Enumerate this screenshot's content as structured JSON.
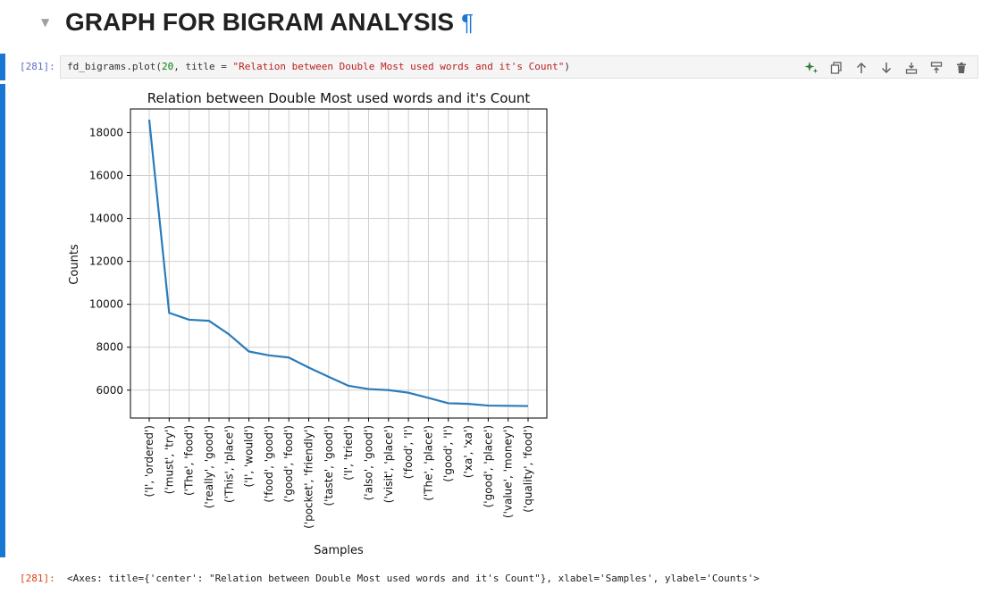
{
  "heading": {
    "text": "GRAPH FOR BIGRAM ANALYSIS",
    "anchor": "¶"
  },
  "cell_in": {
    "prompt": "[281]:",
    "code_parts": [
      "fd_bigrams.plot(",
      "20",
      ", title = ",
      "\"Relation between Double Most used words and it's Count\"",
      ")"
    ]
  },
  "toolbar": {
    "icons": [
      "sparkle-ai-icon",
      "duplicate-icon",
      "move-up-icon",
      "move-down-icon",
      "insert-above-icon",
      "insert-below-icon",
      "delete-icon"
    ],
    "accent": "#2e7d32"
  },
  "cell_out": {
    "prompt": "[281]:",
    "text": "<Axes: title={'center': \"Relation between Double Most used words and it's Count\"}, xlabel='Samples', ylabel='Counts'>"
  },
  "chart_data": {
    "type": "line",
    "title": "Relation between Double Most used words and it's Count",
    "xlabel": "Samples",
    "ylabel": "Counts",
    "categories": [
      "('I', 'ordered')",
      "('must', 'try')",
      "('The', 'food')",
      "('really', 'good')",
      "('This', 'place')",
      "('I', 'would')",
      "('food', 'good')",
      "('good', 'food')",
      "('pocket', 'friendly')",
      "('taste', 'good')",
      "('I', 'tried')",
      "('also', 'good')",
      "('visit', 'place')",
      "('food', 'I')",
      "('The', 'place')",
      "('good', 'I')",
      "('xa', 'xa')",
      "('good', 'place')",
      "('value', 'money')",
      "('quality', 'food')"
    ],
    "values": [
      18600,
      9600,
      9280,
      9230,
      8600,
      7800,
      7620,
      7520,
      7050,
      6620,
      6200,
      6050,
      6000,
      5880,
      5640,
      5390,
      5360,
      5280,
      5270,
      5260
    ],
    "yticks": [
      6000,
      8000,
      10000,
      12000,
      14000,
      16000,
      18000
    ],
    "ylim": [
      4700,
      19100
    ],
    "grid": true,
    "line_color": "#2b7bba"
  }
}
